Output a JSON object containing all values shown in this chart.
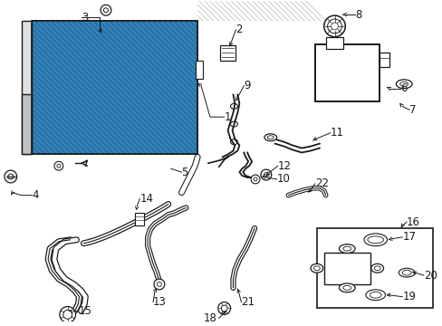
{
  "bg_color": "#ffffff",
  "line_color": "#1a1a1a",
  "hatch_color": "#aaaaaa",
  "fs": 8.5
}
